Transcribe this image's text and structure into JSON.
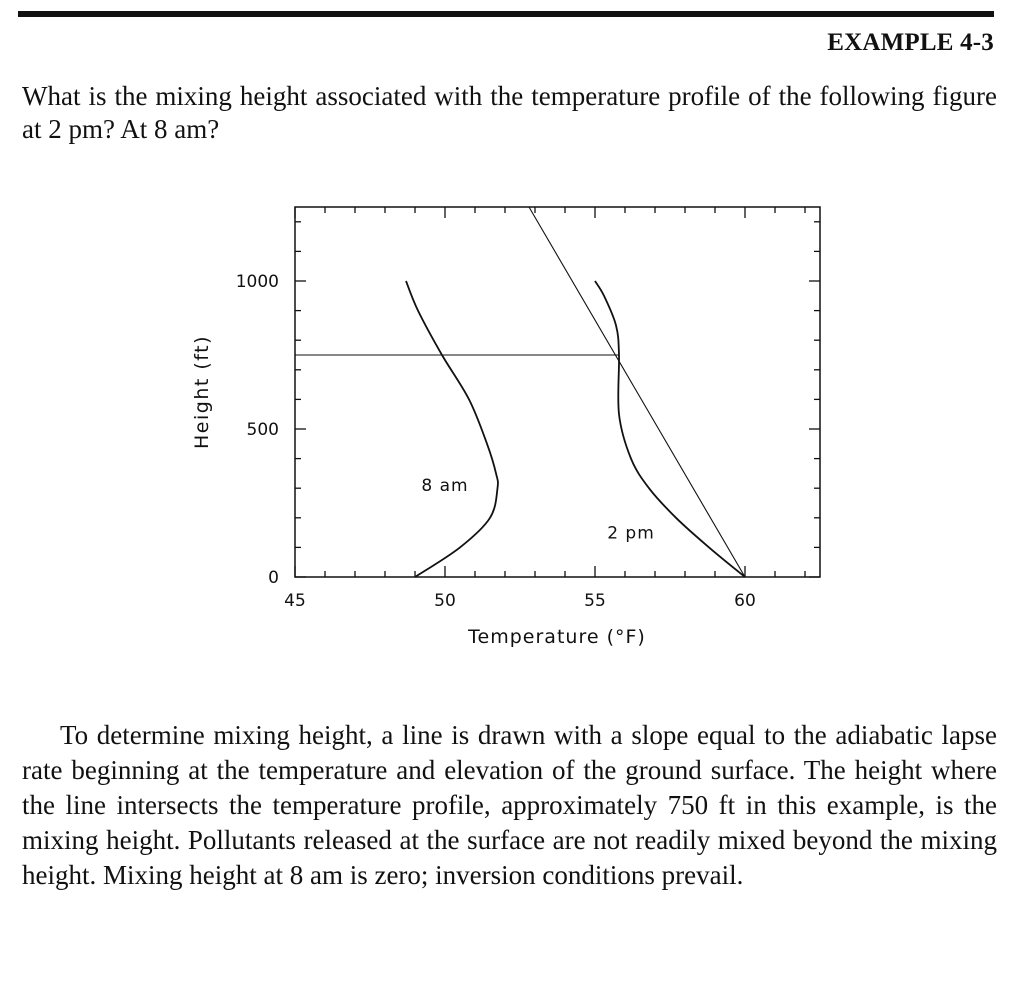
{
  "header": {
    "example_label": "EXAMPLE 4-3"
  },
  "question": "What is the mixing height associated with the temperature profile of the following figure at 2 pm? At 8 am?",
  "chart_data": {
    "type": "line",
    "title": "",
    "xlabel": "Temperature (°F)",
    "ylabel": "Height (ft)",
    "xlim": [
      45,
      62.5
    ],
    "ylim": [
      0,
      1250
    ],
    "xticks": [
      45,
      50,
      55,
      60
    ],
    "xtick_labels": [
      "45",
      "50",
      "55",
      "60"
    ],
    "yticks": [
      0,
      500,
      1000
    ],
    "ytick_labels": [
      "0",
      "500",
      "1000"
    ],
    "grid": false,
    "legend": "none",
    "series": [
      {
        "name": "8 am",
        "kind": "temperature-profile",
        "points": [
          [
            49.0,
            0
          ],
          [
            50.5,
            100
          ],
          [
            51.5,
            200
          ],
          [
            51.75,
            300
          ],
          [
            51.7,
            350
          ],
          [
            51.4,
            450
          ],
          [
            50.8,
            600
          ],
          [
            49.9,
            750
          ],
          [
            49.1,
            900
          ],
          [
            48.7,
            1000
          ]
        ]
      },
      {
        "name": "2 pm",
        "kind": "temperature-profile",
        "points": [
          [
            60.0,
            0
          ],
          [
            58.8,
            100
          ],
          [
            57.7,
            200
          ],
          [
            56.8,
            300
          ],
          [
            56.2,
            400
          ],
          [
            55.8,
            550
          ],
          [
            55.8,
            750
          ],
          [
            55.7,
            850
          ],
          [
            55.3,
            950
          ],
          [
            55.0,
            1000
          ]
        ]
      },
      {
        "name": "",
        "kind": "adiabatic-line",
        "points": [
          [
            60.0,
            0
          ],
          [
            52.8,
            1250
          ]
        ]
      },
      {
        "name": "",
        "kind": "mixing-height",
        "points": [
          [
            45.0,
            750
          ],
          [
            55.8,
            750
          ]
        ]
      }
    ],
    "annotations": [
      {
        "text": "8 am",
        "x": 50.0,
        "y": 310
      },
      {
        "text": "2 pm",
        "x": 56.2,
        "y": 150
      }
    ]
  },
  "body_paragraph": "To determine mixing height, a line is drawn with a slope equal to the adiabatic lapse rate beginning at the temperature and elevation of the ground surface. The height where the line intersects the temperature profile, approximately 750 ft in this example, is the mixing height. Pollutants released at the surface are not readily mixed beyond the mixing height. Mixing height at 8 am is zero; inversion conditions prevail."
}
